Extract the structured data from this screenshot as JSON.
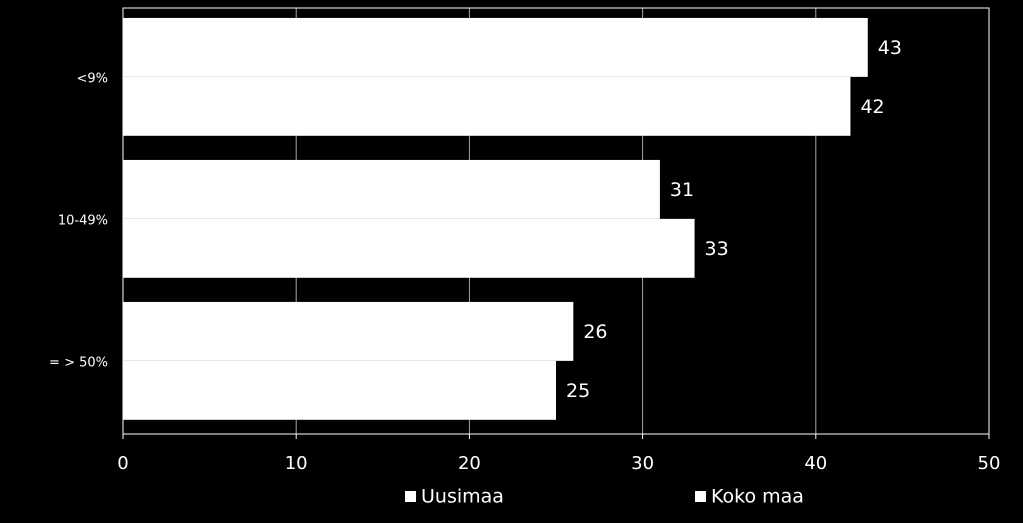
{
  "chart_data": {
    "type": "bar",
    "orientation": "horizontal",
    "categories": [
      "<9%",
      "10-49%",
      "= > 50%"
    ],
    "series": [
      {
        "name": "Uusimaa",
        "color": "#ffffff",
        "values": [
          43,
          31,
          26
        ]
      },
      {
        "name": "Koko maa",
        "color": "#ffffff",
        "values": [
          42,
          33,
          25
        ]
      }
    ],
    "xlim": [
      0,
      50
    ],
    "xticks": [
      0,
      10,
      20,
      30,
      40,
      50
    ],
    "grid": true,
    "legend": "bottom"
  }
}
